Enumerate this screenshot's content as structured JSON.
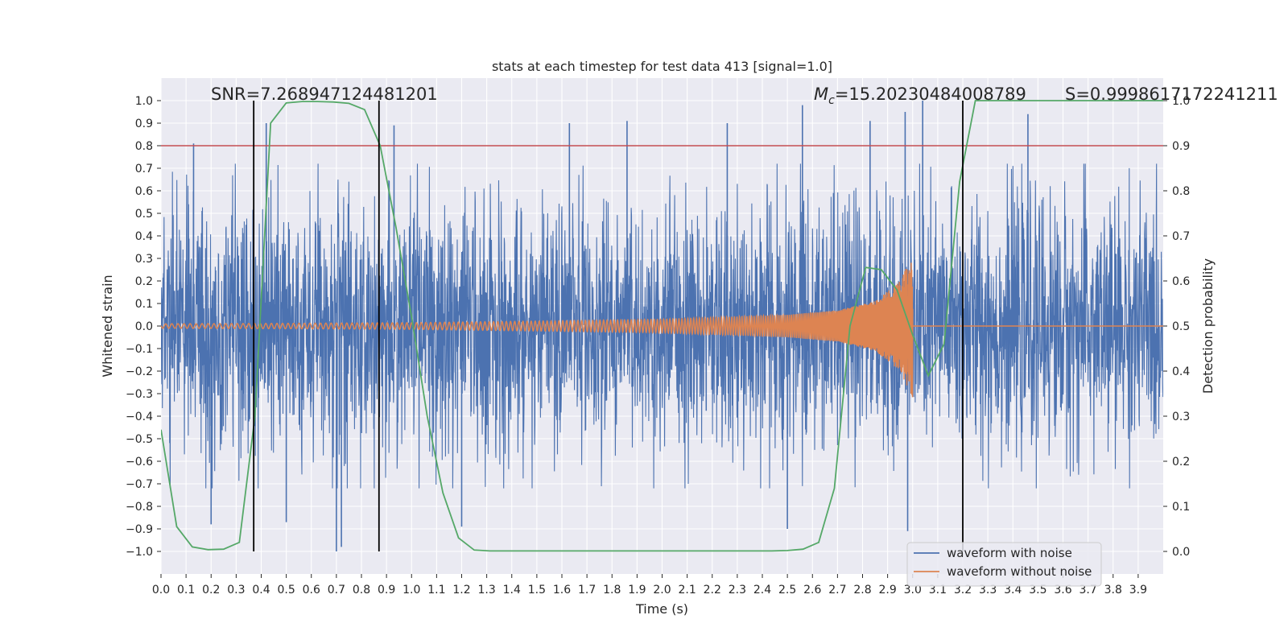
{
  "chart_data": {
    "type": "line",
    "title": "stats at each timestep for test data 413 [signal=1.0]",
    "xlabel": "Time (s)",
    "ylabel": "Whitened strain",
    "ylabel_right": "Detection probability",
    "xlim": [
      0.0,
      4.0
    ],
    "ylim": [
      -1.1,
      1.1
    ],
    "ylim_right": [
      -0.05,
      1.05
    ],
    "x_ticks": [
      0.0,
      0.1,
      0.2,
      0.3,
      0.4,
      0.5,
      0.6,
      0.7,
      0.8,
      0.9,
      1.0,
      1.1,
      1.2,
      1.3,
      1.4,
      1.5,
      1.6,
      1.7,
      1.8,
      1.9,
      2.0,
      2.1,
      2.2,
      2.3,
      2.4,
      2.5,
      2.6,
      2.7,
      2.8,
      2.9,
      3.0,
      3.1,
      3.2,
      3.3,
      3.4,
      3.5,
      3.6,
      3.7,
      3.8,
      3.9
    ],
    "x_tick_labels": [
      "0.0",
      "0.1",
      "0.2",
      "0.3",
      "0.4",
      "0.5",
      "0.6",
      "0.7",
      "0.8",
      "0.9",
      "1.0",
      "1.1",
      "1.2",
      "1.3",
      "1.4",
      "1.5",
      "1.6",
      "1.7",
      "1.8",
      "1.9",
      "2.0",
      "2.1",
      "2.2",
      "2.3",
      "2.4",
      "2.5",
      "2.6",
      "2.7",
      "2.8",
      "2.9",
      "3.0",
      "3.1",
      "3.2",
      "3.3",
      "3.4",
      "3.5",
      "3.6",
      "3.7",
      "3.8",
      "3.9"
    ],
    "y_ticks": [
      1.0,
      0.9,
      0.8,
      0.7,
      0.6,
      0.5,
      0.4,
      0.3,
      0.2,
      0.1,
      0.0,
      -0.1,
      -0.2,
      -0.3,
      -0.4,
      -0.5,
      -0.6,
      -0.7,
      -0.8,
      -0.9,
      -1.0
    ],
    "y_tick_labels": [
      "1.0",
      "0.9",
      "0.8",
      "0.7",
      "0.6",
      "0.5",
      "0.4",
      "0.3",
      "0.2",
      "0.1",
      "0.0",
      "−0.1",
      "−0.2",
      "−0.3",
      "−0.4",
      "−0.5",
      "−0.6",
      "−0.7",
      "−0.8",
      "−0.9",
      "−1.0"
    ],
    "y_right_ticks": [
      1.0,
      0.9,
      0.8,
      0.7,
      0.6,
      0.5,
      0.4,
      0.3,
      0.2,
      0.1,
      0.0
    ],
    "y_right_tick_labels": [
      "1.0",
      "0.9",
      "0.8",
      "0.7",
      "0.6",
      "0.5",
      "0.4",
      "0.3",
      "0.2",
      "0.1",
      "0.0"
    ],
    "series": [
      {
        "name": "waveform with noise",
        "color": "#4c72b0",
        "description_amplitude": 0.38,
        "peak_values": [
          0.81,
          0.9,
          0.89,
          0.9,
          0.91,
          0.9,
          0.98,
          0.91,
          0.95,
          1.0,
          0.94
        ],
        "peak_x": [
          0.13,
          0.42,
          0.93,
          1.63,
          1.86,
          2.26,
          2.56,
          2.83,
          2.97,
          3.04,
          3.46
        ],
        "trough_values": [
          -0.88,
          -0.87,
          -1.0,
          -0.98,
          -0.89,
          -0.9,
          -0.91
        ],
        "trough_x": [
          0.2,
          0.5,
          0.7,
          0.72,
          1.2,
          2.5,
          2.98
        ]
      },
      {
        "name": "waveform without noise",
        "color": "#dd8452",
        "x": [
          0.0,
          0.5,
          1.0,
          1.5,
          2.0,
          2.5,
          2.7,
          2.85,
          2.95,
          3.0
        ],
        "envelope": [
          0.01,
          0.012,
          0.015,
          0.022,
          0.03,
          0.05,
          0.07,
          0.11,
          0.2,
          0.32
        ],
        "end_x": 3.0
      },
      {
        "name": "Detection probability",
        "axis": "right",
        "color": "#55a868",
        "x": [
          0.0,
          0.0625,
          0.125,
          0.1875,
          0.25,
          0.3125,
          0.375,
          0.4375,
          0.5,
          0.5625,
          0.625,
          0.6875,
          0.75,
          0.8125,
          0.875,
          0.9375,
          1.0,
          1.0625,
          1.125,
          1.1875,
          1.25,
          1.3125,
          1.375,
          1.4375,
          1.5,
          1.5625,
          1.625,
          1.6875,
          1.75,
          1.8125,
          1.875,
          1.9375,
          2.0,
          2.0625,
          2.125,
          2.1875,
          2.25,
          2.3125,
          2.375,
          2.4375,
          2.5,
          2.5625,
          2.625,
          2.6875,
          2.75,
          2.8125,
          2.875,
          2.9375,
          3.0,
          3.0625,
          3.125,
          3.1875,
          3.25,
          3.3125,
          3.375,
          3.4375,
          3.5,
          3.5625,
          3.625,
          3.6875,
          3.75,
          3.8125,
          3.875,
          3.9375,
          4.0
        ],
        "y": [
          0.27,
          0.055,
          0.01,
          0.004,
          0.005,
          0.02,
          0.3,
          0.95,
          0.995,
          0.998,
          0.998,
          0.997,
          0.994,
          0.98,
          0.9,
          0.72,
          0.52,
          0.3,
          0.13,
          0.03,
          0.003,
          0.001,
          0.001,
          0.001,
          0.001,
          0.001,
          0.001,
          0.001,
          0.001,
          0.001,
          0.001,
          0.001,
          0.001,
          0.001,
          0.001,
          0.001,
          0.001,
          0.001,
          0.001,
          0.001,
          0.002,
          0.005,
          0.02,
          0.14,
          0.5,
          0.63,
          0.625,
          0.58,
          0.48,
          0.39,
          0.46,
          0.82,
          1.0,
          1.0,
          1.0,
          1.0,
          1.0,
          1.0,
          1.0,
          1.0,
          1.0,
          1.0,
          1.0,
          1.0,
          1.0
        ]
      }
    ],
    "threshold_line": {
      "axis": "right",
      "value": 0.9,
      "color": "#c44e52"
    },
    "vertical_markers_x": [
      0.37,
      0.87,
      3.2
    ],
    "vertical_markers_range": [
      -1.0,
      1.0
    ],
    "annotations": {
      "snr": "SNR=7.268947124481201",
      "mc_symbol": "M",
      "mc_sub": "c",
      "mc_value": "=15.20230484008789",
      "s": "S=0.9998617172241211"
    },
    "legend": {
      "placement": "lower-right",
      "entries": [
        "waveform with noise",
        "waveform without noise"
      ]
    },
    "colors": {
      "axes_bg": "#eaeaf2",
      "grid": "#ffffff",
      "noisy": "#4c72b0",
      "clean": "#dd8452",
      "prob": "#55a868",
      "threshold": "#c44e52",
      "marker": "#000000"
    }
  }
}
